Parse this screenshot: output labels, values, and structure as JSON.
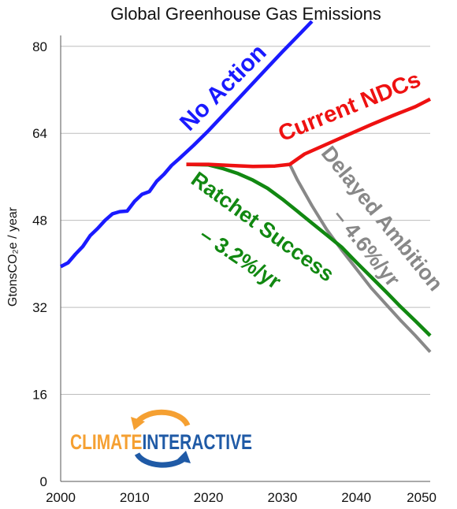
{
  "chart_data": {
    "type": "line",
    "title": "Global Greenhouse Gas Emissions",
    "ylabel": "GtonsCO₂e / year",
    "xlabel": "",
    "xlim": [
      2000,
      2050
    ],
    "ylim": [
      0,
      82
    ],
    "x_ticks": [
      "2000",
      "2010",
      "2020",
      "2030",
      "2040",
      "2050"
    ],
    "y_ticks": [
      "0",
      "16",
      "32",
      "48",
      "64",
      "80"
    ],
    "grid": "horizontal",
    "series": [
      {
        "name": "No Action",
        "color": "#1a1aff",
        "x": [
          2000,
          2001,
          2002,
          2003,
          2004,
          2005,
          2006,
          2007,
          2008,
          2009,
          2010,
          2011,
          2012,
          2013,
          2014,
          2015,
          2016,
          2018,
          2020,
          2022,
          2024,
          2026,
          2028,
          2030,
          2032,
          2034
        ],
        "y": [
          39.5,
          40.2,
          41.8,
          43.2,
          45.2,
          46.5,
          48.0,
          49.2,
          49.6,
          49.7,
          51.5,
          52.8,
          53.3,
          55.2,
          56.5,
          58.1,
          59.3,
          61.8,
          64.5,
          67.4,
          70.3,
          73.2,
          76.1,
          79.0,
          81.8,
          84.6
        ]
      },
      {
        "name": "Current NDCs",
        "color": "#ee1111",
        "x": [
          2017,
          2020,
          2023,
          2026,
          2029,
          2031,
          2033,
          2036,
          2039,
          2042,
          2045,
          2048,
          2050
        ],
        "y": [
          58.3,
          58.3,
          58.1,
          57.9,
          58.0,
          58.3,
          60.2,
          62.0,
          63.8,
          65.6,
          67.3,
          68.9,
          70.3
        ]
      },
      {
        "name": "Ratchet Success – 3.2%/yr",
        "color": "#118811",
        "x": [
          2017,
          2020,
          2022,
          2024,
          2026,
          2028,
          2030,
          2032,
          2034,
          2036,
          2038,
          2040,
          2042,
          2044,
          2046,
          2048,
          2050
        ],
        "y": [
          58.3,
          58.2,
          57.5,
          56.6,
          55.4,
          53.9,
          51.9,
          49.7,
          47.5,
          45.3,
          43.1,
          40.3,
          37.6,
          34.9,
          32.1,
          29.5,
          26.8
        ]
      },
      {
        "name": "Delayed Ambition – 4.6%/yr",
        "color": "#888888",
        "x": [
          2031,
          2032,
          2034,
          2036,
          2038,
          2040,
          2042,
          2044,
          2046,
          2048,
          2050
        ],
        "y": [
          58.3,
          55.5,
          50.7,
          46.3,
          42.6,
          39.1,
          35.6,
          32.6,
          29.6,
          26.8,
          23.8
        ]
      }
    ],
    "annotations": [
      {
        "text": "No Action",
        "color": "#1a1aff"
      },
      {
        "text": "Current NDCs",
        "color": "#ee1111"
      },
      {
        "text": "Ratchet Success",
        "color": "#118811"
      },
      {
        "text": "– 3.2%/yr",
        "color": "#118811"
      },
      {
        "text": "Delayed Ambition",
        "color": "#888888"
      },
      {
        "text": "– 4.6%/yr",
        "color": "#888888"
      }
    ]
  },
  "logo": {
    "text_part1": "CLIMATE",
    "text_part2": "INTERACTIVE",
    "color1": "#f5a032",
    "color2": "#1f5aa6"
  }
}
